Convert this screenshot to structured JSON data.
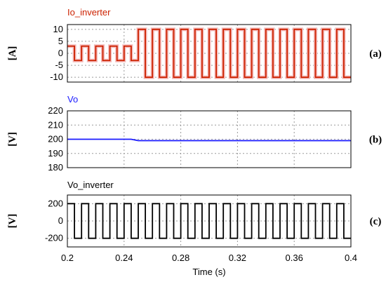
{
  "chart_data": [
    {
      "type": "line",
      "panel_label": "(a)",
      "title": "Io_inverter",
      "ylabel": "[A]",
      "ylim": [
        -12,
        12
      ],
      "yticks": [
        10,
        5,
        0,
        -5,
        -10
      ],
      "xlim": [
        0.2,
        0.4
      ],
      "grid": true,
      "series": [
        {
          "color": "#cc2200",
          "envelope_color": "#f4b8b8",
          "x": [
            0.2,
            0.205,
            0.205,
            0.21,
            0.21,
            0.215,
            0.215,
            0.22,
            0.22,
            0.225,
            0.225,
            0.23,
            0.23,
            0.235,
            0.235,
            0.24,
            0.24,
            0.245,
            0.245,
            0.25,
            0.25,
            0.255,
            0.255,
            0.26,
            0.26,
            0.265,
            0.265,
            0.27,
            0.27,
            0.275,
            0.275,
            0.28,
            0.28,
            0.285,
            0.285,
            0.29,
            0.29,
            0.295,
            0.295,
            0.3,
            0.3,
            0.305,
            0.305,
            0.31,
            0.31,
            0.315,
            0.315,
            0.32,
            0.32,
            0.325,
            0.325,
            0.33,
            0.33,
            0.335,
            0.335,
            0.34,
            0.34,
            0.345,
            0.345,
            0.35,
            0.35,
            0.355,
            0.355,
            0.36,
            0.36,
            0.365,
            0.365,
            0.37,
            0.37,
            0.375,
            0.375,
            0.38,
            0.38,
            0.385,
            0.385,
            0.39,
            0.39,
            0.395,
            0.395,
            0.4
          ],
          "y": [
            3,
            3,
            -3,
            -3,
            3,
            3,
            -3,
            -3,
            3,
            3,
            -3,
            -3,
            3,
            3,
            -3,
            -3,
            3,
            3,
            -3,
            -3,
            10,
            10,
            -10,
            -10,
            10,
            10,
            -10,
            -10,
            10,
            10,
            -10,
            -10,
            10,
            10,
            -10,
            -10,
            10,
            10,
            -10,
            -10,
            10,
            10,
            -10,
            -10,
            10,
            10,
            -10,
            -10,
            10,
            10,
            -10,
            -10,
            10,
            10,
            -10,
            -10,
            10,
            10,
            -10,
            -10,
            10,
            10,
            -10,
            -10,
            10,
            10,
            -10,
            -10,
            10,
            10,
            -10,
            -10,
            10,
            10,
            -10,
            -10,
            10,
            10,
            -10,
            -10
          ]
        }
      ]
    },
    {
      "type": "line",
      "panel_label": "(b)",
      "title": "Vo",
      "ylabel": "[V]",
      "ylim": [
        180,
        220
      ],
      "yticks": [
        220,
        210,
        200,
        190,
        180
      ],
      "xlim": [
        0.2,
        0.4
      ],
      "grid": true,
      "series": [
        {
          "color": "#1a1aff",
          "x": [
            0.2,
            0.23,
            0.245,
            0.25,
            0.4
          ],
          "y": [
            200,
            200,
            200,
            199,
            199
          ]
        }
      ]
    },
    {
      "type": "line",
      "panel_label": "(c)",
      "title": "Vo_inverter",
      "ylabel": "[V]",
      "ylim": [
        -300,
        300
      ],
      "yticks": [
        200,
        0,
        -200
      ],
      "xlim": [
        0.2,
        0.4
      ],
      "xticks": [
        0.2,
        0.24,
        0.28,
        0.32,
        0.36,
        0.4
      ],
      "xlabel": "Time (s)",
      "grid": true,
      "series": [
        {
          "color": "#000000",
          "x": [
            0.2,
            0.205,
            0.205,
            0.21,
            0.21,
            0.215,
            0.215,
            0.22,
            0.22,
            0.225,
            0.225,
            0.23,
            0.23,
            0.235,
            0.235,
            0.24,
            0.24,
            0.245,
            0.245,
            0.25,
            0.25,
            0.255,
            0.255,
            0.26,
            0.26,
            0.265,
            0.265,
            0.27,
            0.27,
            0.275,
            0.275,
            0.28,
            0.28,
            0.285,
            0.285,
            0.29,
            0.29,
            0.295,
            0.295,
            0.3,
            0.3,
            0.305,
            0.305,
            0.31,
            0.31,
            0.315,
            0.315,
            0.32,
            0.32,
            0.325,
            0.325,
            0.33,
            0.33,
            0.335,
            0.335,
            0.34,
            0.34,
            0.345,
            0.345,
            0.35,
            0.35,
            0.355,
            0.355,
            0.36,
            0.36,
            0.365,
            0.365,
            0.37,
            0.37,
            0.375,
            0.375,
            0.38,
            0.38,
            0.385,
            0.385,
            0.39,
            0.39,
            0.395,
            0.395,
            0.4
          ],
          "y": [
            200,
            200,
            -200,
            -200,
            200,
            200,
            -200,
            -200,
            200,
            200,
            -200,
            -200,
            200,
            200,
            -200,
            -200,
            200,
            200,
            -200,
            -200,
            200,
            200,
            -200,
            -200,
            200,
            200,
            -200,
            -200,
            200,
            200,
            -200,
            -200,
            200,
            200,
            -200,
            -200,
            200,
            200,
            -200,
            -200,
            200,
            200,
            -200,
            -200,
            200,
            200,
            -200,
            -200,
            200,
            200,
            -200,
            -200,
            200,
            200,
            -200,
            -200,
            200,
            200,
            -200,
            -200,
            200,
            200,
            -200,
            -200,
            200,
            200,
            -200,
            -200,
            200,
            200,
            -200,
            -200,
            200,
            200,
            -200,
            -200,
            200,
            200,
            -200,
            -200
          ]
        }
      ]
    }
  ]
}
